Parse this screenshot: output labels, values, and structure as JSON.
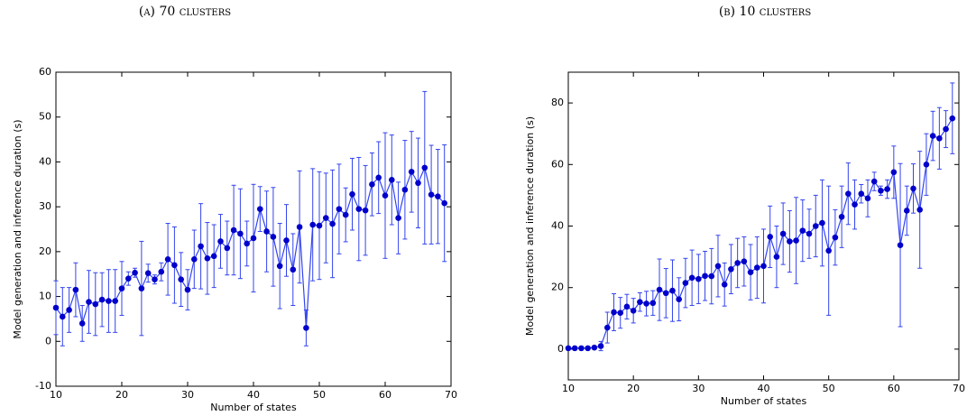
{
  "chart_data": [
    {
      "type": "line",
      "title": "(a) 70 clusters",
      "xlabel": "Number of states",
      "ylabel": "Model generation and inference duration (s)",
      "color": "#0000cc",
      "x": [
        10,
        11,
        12,
        13,
        14,
        15,
        16,
        17,
        18,
        19,
        20,
        21,
        22,
        23,
        24,
        25,
        26,
        27,
        28,
        29,
        30,
        31,
        32,
        33,
        34,
        35,
        36,
        37,
        38,
        39,
        40,
        41,
        42,
        43,
        44,
        45,
        46,
        47,
        48,
        49,
        50,
        51,
        52,
        53,
        54,
        55,
        56,
        57,
        58,
        59,
        60,
        61,
        62,
        63,
        64,
        65,
        66,
        67,
        68,
        69
      ],
      "values": [
        7.5,
        5.5,
        7,
        11.5,
        4,
        8.8,
        8.3,
        9.3,
        9,
        9,
        11.8,
        14,
        15.3,
        11.8,
        15.2,
        13.8,
        15.5,
        18.3,
        17,
        13.8,
        11.5,
        18.3,
        21.2,
        18.5,
        19,
        22.3,
        20.8,
        24.8,
        24,
        21.8,
        23,
        29.5,
        24.5,
        23.3,
        16.8,
        22.5,
        16,
        25.5,
        3,
        26,
        25.8,
        27.5,
        26.2,
        29.5,
        28.2,
        32.8,
        29.5,
        29.2,
        35,
        36.5,
        32.5,
        36,
        27.5,
        33.8,
        37.8,
        35.3,
        38.7,
        32.7,
        32.3,
        30.8
      ],
      "errors": [
        6,
        6.5,
        5,
        6,
        4,
        7,
        7,
        6,
        7,
        7,
        6,
        1.5,
        1,
        10.5,
        2,
        1,
        2,
        8,
        8.5,
        6,
        4.5,
        6.5,
        9.5,
        8,
        7,
        6,
        6,
        10,
        10,
        5,
        12,
        5,
        9,
        11,
        9.5,
        8,
        8,
        12.5,
        4,
        12.5,
        12,
        10,
        12,
        10,
        6,
        8,
        11.5,
        10,
        7,
        8,
        14,
        10,
        8,
        11,
        9,
        10,
        17,
        11,
        10.5,
        13
      ],
      "xlim": [
        10,
        70
      ],
      "xticks": [
        10,
        20,
        30,
        40,
        50,
        60,
        70
      ],
      "ylim": [
        -10,
        60
      ],
      "yticks": [
        -10,
        0,
        10,
        20,
        30,
        40,
        50,
        60
      ]
    },
    {
      "type": "line",
      "title": "(b) 10 clusters",
      "xlabel": "Number of states",
      "ylabel": "Model generation and inference duration (s)",
      "color": "#0000cc",
      "x": [
        10,
        11,
        12,
        13,
        14,
        15,
        16,
        17,
        18,
        19,
        20,
        21,
        22,
        23,
        24,
        25,
        26,
        27,
        28,
        29,
        30,
        31,
        32,
        33,
        34,
        35,
        36,
        37,
        38,
        39,
        40,
        41,
        42,
        43,
        44,
        45,
        46,
        47,
        48,
        49,
        50,
        51,
        52,
        53,
        54,
        55,
        56,
        57,
        58,
        59,
        60,
        61,
        62,
        63,
        64,
        65,
        66,
        67,
        68,
        69
      ],
      "values": [
        0.3,
        0.3,
        0.3,
        0.3,
        0.5,
        1,
        7,
        12,
        11.8,
        13.8,
        12.5,
        15.3,
        14.8,
        15,
        19.3,
        18.2,
        19,
        16.2,
        21.5,
        23.2,
        22.8,
        23.8,
        23.7,
        27,
        21,
        26,
        28,
        28.5,
        25,
        26.5,
        27,
        36.5,
        30,
        37.5,
        35,
        35.3,
        38.5,
        37.5,
        40,
        41,
        32,
        36.3,
        43,
        50.5,
        47,
        50.5,
        49,
        54.5,
        51.5,
        52,
        57.5,
        33.8,
        45,
        52.2,
        45.3,
        60,
        69.3,
        68.5,
        71.5,
        75
      ],
      "errors": [
        0.3,
        0.3,
        0.3,
        0.3,
        0.3,
        1.5,
        5,
        6,
        5,
        4,
        4,
        3,
        4,
        4,
        10,
        8,
        10,
        7,
        8,
        9,
        8,
        8,
        9,
        10,
        7,
        8,
        8,
        8,
        9,
        10,
        12,
        10,
        10,
        10,
        10,
        14,
        10,
        8,
        10,
        14,
        21,
        9,
        10,
        10,
        8,
        3,
        6,
        3,
        1.5,
        3,
        8.5,
        26.5,
        8,
        8,
        19,
        10,
        8,
        10,
        6,
        11.5
      ],
      "xlim": [
        10,
        70
      ],
      "xticks": [
        10,
        20,
        30,
        40,
        50,
        60,
        70
      ],
      "ylim": [
        -10,
        90
      ],
      "yticks": [
        0,
        20,
        40,
        60,
        80
      ]
    }
  ]
}
